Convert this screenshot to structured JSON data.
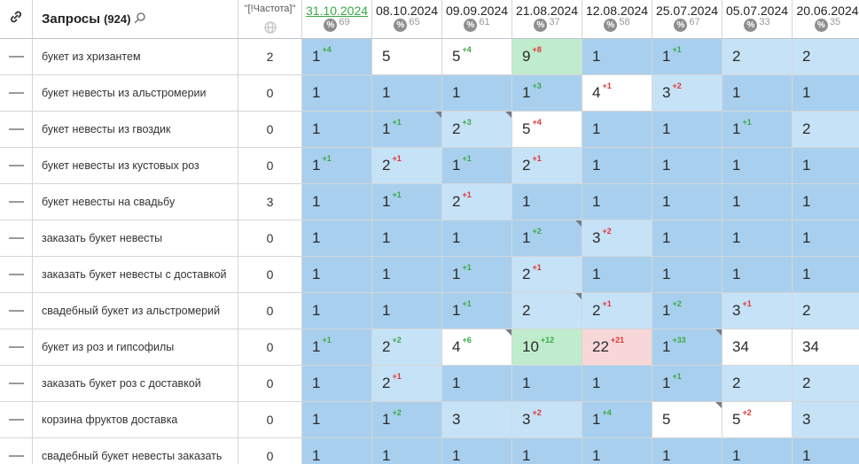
{
  "header": {
    "link_icon": "link-icon",
    "queries_label": "Запросы",
    "queries_count": "(924)",
    "search_icon": "search-icon",
    "frequency_label": "\"[!Частота]\"",
    "frequency_icon": "globe-icon",
    "dates": [
      {
        "date": "31.10.2024",
        "visibility": "69",
        "active": true
      },
      {
        "date": "08.10.2024",
        "visibility": "65",
        "active": false
      },
      {
        "date": "09.09.2024",
        "visibility": "61",
        "active": false
      },
      {
        "date": "21.08.2024",
        "visibility": "37",
        "active": false
      },
      {
        "date": "12.08.2024",
        "visibility": "58",
        "active": false
      },
      {
        "date": "25.07.2024",
        "visibility": "67",
        "active": false
      },
      {
        "date": "05.07.2024",
        "visibility": "33",
        "active": false
      },
      {
        "date": "20.06.2024",
        "visibility": "35",
        "active": false
      }
    ],
    "percent_symbol": "%"
  },
  "colors": {
    "top": "#a8d0ee",
    "mid": "#b8dbf5",
    "light": "#c6e2f7",
    "green": "#8fdcad",
    "light_green": "#bfeccd",
    "pink": "#f8d7d8",
    "white": "#ffffff",
    "delta_up": "#3aa845",
    "delta_down": "#e03535"
  },
  "rows": [
    {
      "query": "букет из хризантем",
      "freq": "2",
      "cells": [
        {
          "v": "1",
          "d": "+4",
          "c": "top"
        },
        {
          "v": "5",
          "c": "green"
        },
        {
          "v": "5",
          "d": "+4",
          "c": "green"
        },
        {
          "v": "9",
          "d": "+8",
          "c": "lgrn",
          "dir": "dn"
        },
        {
          "v": "1",
          "c": "top"
        },
        {
          "v": "1",
          "d": "+1",
          "c": "top"
        },
        {
          "v": "2",
          "c": "lt"
        },
        {
          "v": "2",
          "c": "lt"
        }
      ]
    },
    {
      "query": "букет невесты из альстромерии",
      "freq": "0",
      "cells": [
        {
          "v": "1",
          "c": "top"
        },
        {
          "v": "1",
          "c": "top"
        },
        {
          "v": "1",
          "c": "top"
        },
        {
          "v": "1",
          "d": "+3",
          "c": "top"
        },
        {
          "v": "4",
          "d": "+1",
          "c": "green",
          "dir": "dn"
        },
        {
          "v": "3",
          "d": "+2",
          "c": "lt",
          "dir": "dn"
        },
        {
          "v": "1",
          "c": "top"
        },
        {
          "v": "1",
          "c": "top"
        }
      ]
    },
    {
      "query": "букет невесты из гвоздик",
      "freq": "0",
      "cells": [
        {
          "v": "1",
          "c": "top"
        },
        {
          "v": "1",
          "d": "+1",
          "c": "top",
          "corner": true
        },
        {
          "v": "2",
          "d": "+3",
          "c": "lt",
          "corner": true
        },
        {
          "v": "5",
          "d": "+4",
          "c": "green",
          "dir": "dn"
        },
        {
          "v": "1",
          "c": "top"
        },
        {
          "v": "1",
          "c": "top"
        },
        {
          "v": "1",
          "d": "+1",
          "c": "top"
        },
        {
          "v": "2",
          "c": "lt"
        }
      ]
    },
    {
      "query": "букет невесты из кустовых роз",
      "freq": "0",
      "cells": [
        {
          "v": "1",
          "d": "+1",
          "c": "top"
        },
        {
          "v": "2",
          "d": "+1",
          "c": "lt",
          "dir": "dn"
        },
        {
          "v": "1",
          "d": "+1",
          "c": "top"
        },
        {
          "v": "2",
          "d": "+1",
          "c": "lt",
          "dir": "dn"
        },
        {
          "v": "1",
          "c": "top"
        },
        {
          "v": "1",
          "c": "top"
        },
        {
          "v": "1",
          "c": "top"
        },
        {
          "v": "1",
          "c": "top"
        }
      ]
    },
    {
      "query": "букет невесты на свадьбу",
      "freq": "3",
      "cells": [
        {
          "v": "1",
          "c": "top"
        },
        {
          "v": "1",
          "d": "+1",
          "c": "top"
        },
        {
          "v": "2",
          "d": "+1",
          "c": "lt",
          "dir": "dn"
        },
        {
          "v": "1",
          "c": "top"
        },
        {
          "v": "1",
          "c": "top"
        },
        {
          "v": "1",
          "c": "top"
        },
        {
          "v": "1",
          "c": "top"
        },
        {
          "v": "1",
          "c": "top"
        }
      ]
    },
    {
      "query": "заказать букет невесты",
      "freq": "0",
      "cells": [
        {
          "v": "1",
          "c": "top"
        },
        {
          "v": "1",
          "c": "top"
        },
        {
          "v": "1",
          "c": "top"
        },
        {
          "v": "1",
          "d": "+2",
          "c": "top",
          "corner": true
        },
        {
          "v": "3",
          "d": "+2",
          "c": "lt",
          "dir": "dn"
        },
        {
          "v": "1",
          "c": "top"
        },
        {
          "v": "1",
          "c": "top"
        },
        {
          "v": "1",
          "c": "top"
        }
      ]
    },
    {
      "query": "заказать букет невесты с доставкой",
      "freq": "0",
      "cells": [
        {
          "v": "1",
          "c": "top"
        },
        {
          "v": "1",
          "c": "top"
        },
        {
          "v": "1",
          "d": "+1",
          "c": "top"
        },
        {
          "v": "2",
          "d": "+1",
          "c": "lt",
          "dir": "dn"
        },
        {
          "v": "1",
          "c": "top"
        },
        {
          "v": "1",
          "c": "top"
        },
        {
          "v": "1",
          "c": "top"
        },
        {
          "v": "1",
          "c": "top"
        }
      ]
    },
    {
      "query": "свадебный букет из альстромерий",
      "freq": "0",
      "cells": [
        {
          "v": "1",
          "c": "top"
        },
        {
          "v": "1",
          "c": "top"
        },
        {
          "v": "1",
          "d": "+1",
          "c": "top"
        },
        {
          "v": "2",
          "c": "lt",
          "corner": true
        },
        {
          "v": "2",
          "d": "+1",
          "c": "lt",
          "dir": "dn"
        },
        {
          "v": "1",
          "d": "+2",
          "c": "top"
        },
        {
          "v": "3",
          "d": "+1",
          "c": "lt",
          "dir": "dn"
        },
        {
          "v": "2",
          "c": "lt"
        }
      ]
    },
    {
      "query": "букет из роз и гипсофилы",
      "freq": "0",
      "cells": [
        {
          "v": "1",
          "d": "+1",
          "c": "top"
        },
        {
          "v": "2",
          "d": "+2",
          "c": "lt"
        },
        {
          "v": "4",
          "d": "+6",
          "c": "green",
          "corner": true
        },
        {
          "v": "10",
          "d": "+12",
          "c": "lgrn"
        },
        {
          "v": "22",
          "d": "+21",
          "c": "pink",
          "dir": "dn"
        },
        {
          "v": "1",
          "d": "+33",
          "c": "top",
          "corner": true
        },
        {
          "v": "34",
          "c": "wht"
        },
        {
          "v": "34",
          "c": "wht"
        }
      ]
    },
    {
      "query": "заказать букет роз с доставкой",
      "freq": "0",
      "cells": [
        {
          "v": "1",
          "c": "top"
        },
        {
          "v": "2",
          "d": "+1",
          "c": "lt",
          "dir": "dn"
        },
        {
          "v": "1",
          "c": "top"
        },
        {
          "v": "1",
          "c": "top"
        },
        {
          "v": "1",
          "c": "top"
        },
        {
          "v": "1",
          "d": "+1",
          "c": "top"
        },
        {
          "v": "2",
          "c": "lt"
        },
        {
          "v": "2",
          "c": "lt"
        }
      ]
    },
    {
      "query": "корзина фруктов доставка",
      "freq": "0",
      "cells": [
        {
          "v": "1",
          "c": "top"
        },
        {
          "v": "1",
          "d": "+2",
          "c": "top"
        },
        {
          "v": "3",
          "c": "lt"
        },
        {
          "v": "3",
          "d": "+2",
          "c": "lt",
          "dir": "dn"
        },
        {
          "v": "1",
          "d": "+4",
          "c": "top"
        },
        {
          "v": "5",
          "c": "green",
          "corner": true
        },
        {
          "v": "5",
          "d": "+2",
          "c": "green",
          "dir": "dn"
        },
        {
          "v": "3",
          "c": "lt"
        }
      ]
    },
    {
      "query": "свадебный букет невесты заказать",
      "freq": "0",
      "cells": [
        {
          "v": "1",
          "c": "top"
        },
        {
          "v": "1",
          "c": "top"
        },
        {
          "v": "1",
          "c": "top"
        },
        {
          "v": "1",
          "c": "top"
        },
        {
          "v": "1",
          "c": "top"
        },
        {
          "v": "1",
          "c": "top"
        },
        {
          "v": "1",
          "c": "top"
        },
        {
          "v": "1",
          "c": "top"
        }
      ]
    }
  ]
}
